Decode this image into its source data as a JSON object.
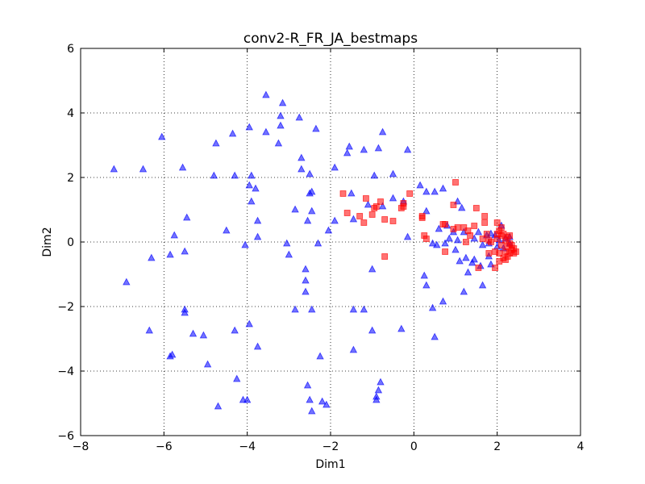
{
  "chart_data": {
    "type": "scatter",
    "title": "conv2-R_FR_JA_bestmaps",
    "xlabel": "Dim1",
    "ylabel": "Dim2",
    "xlim": [
      -8,
      4
    ],
    "ylim": [
      -6,
      6
    ],
    "xticks": [
      -8,
      -6,
      -4,
      -2,
      0,
      2,
      4
    ],
    "yticks": [
      -6,
      -4,
      -2,
      0,
      2,
      4,
      6
    ],
    "xtick_labels": [
      "−8",
      "−6",
      "−4",
      "−2",
      "0",
      "2",
      "4"
    ],
    "ytick_labels": [
      "−6",
      "−4",
      "−2",
      "0",
      "2",
      "4",
      "6"
    ],
    "grid": true,
    "series": [
      {
        "marker": "triangle",
        "color": "#0000ff",
        "points": [
          [
            -7.2,
            2.25
          ],
          [
            -6.5,
            2.25
          ],
          [
            -6.05,
            3.25
          ],
          [
            -6.9,
            -1.25
          ],
          [
            -6.3,
            -0.5
          ],
          [
            -6.35,
            -2.75
          ],
          [
            -5.85,
            -3.55
          ],
          [
            -5.8,
            -3.5
          ],
          [
            -5.85,
            -0.4
          ],
          [
            -5.75,
            0.2
          ],
          [
            -5.55,
            2.3
          ],
          [
            -5.45,
            0.75
          ],
          [
            -5.5,
            -0.3
          ],
          [
            -5.5,
            -2.1
          ],
          [
            -5.5,
            -2.2
          ],
          [
            -5.3,
            -2.85
          ],
          [
            -5.05,
            -2.9
          ],
          [
            -4.95,
            -3.8
          ],
          [
            -4.75,
            3.05
          ],
          [
            -4.8,
            2.05
          ],
          [
            -4.7,
            -5.1
          ],
          [
            -4.5,
            0.35
          ],
          [
            -4.35,
            3.35
          ],
          [
            -4.3,
            2.05
          ],
          [
            -4.3,
            -2.75
          ],
          [
            -4.25,
            -4.25
          ],
          [
            -4.1,
            -4.9
          ],
          [
            -4.0,
            -4.9
          ],
          [
            -4.05,
            -0.1
          ],
          [
            -3.95,
            3.55
          ],
          [
            -3.95,
            1.75
          ],
          [
            -3.9,
            2.05
          ],
          [
            -3.9,
            1.25
          ],
          [
            -3.95,
            -2.55
          ],
          [
            -3.75,
            -3.25
          ],
          [
            -3.8,
            1.65
          ],
          [
            -3.75,
            0.65
          ],
          [
            -3.75,
            0.15
          ],
          [
            -3.55,
            4.55
          ],
          [
            -3.55,
            3.4
          ],
          [
            -3.25,
            3.05
          ],
          [
            -3.15,
            4.3
          ],
          [
            -3.2,
            3.9
          ],
          [
            -3.2,
            3.6
          ],
          [
            -3.05,
            -0.05
          ],
          [
            -3.0,
            -0.4
          ],
          [
            -2.85,
            1.0
          ],
          [
            -2.85,
            -2.1
          ],
          [
            -2.75,
            3.85
          ],
          [
            -2.7,
            2.25
          ],
          [
            -2.7,
            2.6
          ],
          [
            -2.6,
            -0.85
          ],
          [
            -2.6,
            -1.2
          ],
          [
            -2.6,
            -1.55
          ],
          [
            -2.55,
            0.65
          ],
          [
            -2.5,
            2.1
          ],
          [
            -2.5,
            1.5
          ],
          [
            -2.45,
            0.95
          ],
          [
            -2.45,
            1.55
          ],
          [
            -2.45,
            -2.1
          ],
          [
            -2.55,
            -4.45
          ],
          [
            -2.5,
            -4.9
          ],
          [
            -2.45,
            -5.25
          ],
          [
            -2.35,
            3.5
          ],
          [
            -2.3,
            -0.05
          ],
          [
            -2.25,
            -3.55
          ],
          [
            -2.2,
            -4.95
          ],
          [
            -2.05,
            0.35
          ],
          [
            -2.1,
            -5.05
          ],
          [
            -1.9,
            0.65
          ],
          [
            -1.9,
            2.3
          ],
          [
            -1.6,
            2.75
          ],
          [
            -1.55,
            2.95
          ],
          [
            -1.5,
            1.5
          ],
          [
            -1.45,
            0.7
          ],
          [
            -1.45,
            -2.1
          ],
          [
            -1.45,
            -3.35
          ],
          [
            -1.2,
            2.85
          ],
          [
            -1.2,
            -2.1
          ],
          [
            -1.1,
            1.15
          ],
          [
            -1.0,
            -2.75
          ],
          [
            -1.0,
            -0.85
          ],
          [
            -0.95,
            2.05
          ],
          [
            -0.85,
            2.9
          ],
          [
            -0.75,
            3.4
          ],
          [
            -0.8,
            -4.35
          ],
          [
            -0.85,
            -4.6
          ],
          [
            -0.9,
            -4.8
          ],
          [
            -0.9,
            -4.9
          ],
          [
            -0.75,
            1.1
          ],
          [
            -0.5,
            2.1
          ],
          [
            -0.5,
            1.35
          ],
          [
            -0.3,
            -2.7
          ],
          [
            -0.25,
            1.25
          ],
          [
            -0.15,
            2.85
          ],
          [
            -0.15,
            0.15
          ],
          [
            0.15,
            1.75
          ],
          [
            0.25,
            -1.05
          ],
          [
            0.3,
            1.55
          ],
          [
            0.3,
            0.95
          ],
          [
            0.3,
            -1.35
          ],
          [
            0.45,
            -0.05
          ],
          [
            0.5,
            1.55
          ],
          [
            0.45,
            -2.05
          ],
          [
            0.5,
            -2.95
          ],
          [
            0.55,
            -0.1
          ],
          [
            0.6,
            0.4
          ],
          [
            0.7,
            1.65
          ],
          [
            0.7,
            -1.85
          ],
          [
            0.75,
            -0.05
          ],
          [
            0.8,
            0.5
          ],
          [
            0.85,
            0.1
          ],
          [
            0.95,
            0.3
          ],
          [
            1.0,
            -0.25
          ],
          [
            1.05,
            1.25
          ],
          [
            1.05,
            0.05
          ],
          [
            1.15,
            1.05
          ],
          [
            1.1,
            -0.6
          ],
          [
            1.2,
            0.3
          ],
          [
            1.2,
            -1.55
          ],
          [
            1.25,
            -0.5
          ],
          [
            1.3,
            -0.95
          ],
          [
            1.4,
            -0.65
          ],
          [
            1.45,
            -0.55
          ],
          [
            1.45,
            0.1
          ],
          [
            1.55,
            0.3
          ],
          [
            1.6,
            -0.75
          ],
          [
            1.65,
            -1.35
          ],
          [
            1.65,
            -0.1
          ],
          [
            1.75,
            0.2
          ],
          [
            1.8,
            -0.05
          ],
          [
            1.8,
            -0.45
          ],
          [
            1.85,
            0.25
          ],
          [
            1.85,
            -0.7
          ],
          [
            1.95,
            0.2
          ],
          [
            2.0,
            -0.15
          ],
          [
            2.05,
            0.05
          ],
          [
            2.1,
            0.5
          ],
          [
            2.15,
            -0.2
          ],
          [
            2.2,
            0.1
          ],
          [
            2.3,
            0.15
          ],
          [
            2.3,
            -0.05
          ]
        ]
      },
      {
        "marker": "square",
        "color": "#ff0000",
        "points": [
          [
            -1.7,
            1.5
          ],
          [
            -1.6,
            0.9
          ],
          [
            -1.3,
            0.8
          ],
          [
            -1.2,
            0.6
          ],
          [
            -1.15,
            1.35
          ],
          [
            -1.0,
            0.85
          ],
          [
            -0.95,
            1.05
          ],
          [
            -0.9,
            1.1
          ],
          [
            -0.8,
            1.25
          ],
          [
            -0.7,
            -0.45
          ],
          [
            -0.7,
            0.7
          ],
          [
            -0.5,
            0.65
          ],
          [
            -0.3,
            1.05
          ],
          [
            -0.25,
            1.1
          ],
          [
            -0.25,
            1.2
          ],
          [
            -0.1,
            1.5
          ],
          [
            0.2,
            0.8
          ],
          [
            0.2,
            0.75
          ],
          [
            0.25,
            0.2
          ],
          [
            0.3,
            0.1
          ],
          [
            0.7,
            0.55
          ],
          [
            0.75,
            -0.3
          ],
          [
            0.75,
            0.55
          ],
          [
            0.95,
            1.15
          ],
          [
            0.95,
            0.4
          ],
          [
            1.0,
            1.85
          ],
          [
            1.05,
            0.45
          ],
          [
            1.2,
            0.45
          ],
          [
            1.25,
            0.0
          ],
          [
            1.3,
            0.35
          ],
          [
            1.35,
            0.2
          ],
          [
            1.45,
            0.5
          ],
          [
            1.5,
            1.05
          ],
          [
            1.55,
            -0.8
          ],
          [
            1.65,
            0.1
          ],
          [
            1.7,
            0.8
          ],
          [
            1.7,
            0.6
          ],
          [
            1.75,
            0.25
          ],
          [
            1.8,
            0.05
          ],
          [
            1.85,
            0.0
          ],
          [
            1.8,
            -0.35
          ],
          [
            1.95,
            -0.3
          ],
          [
            1.95,
            -0.8
          ],
          [
            2.0,
            0.6
          ],
          [
            2.0,
            0.1
          ],
          [
            2.05,
            -0.35
          ],
          [
            2.05,
            0.35
          ],
          [
            2.1,
            0.2
          ],
          [
            2.1,
            -0.1
          ],
          [
            2.15,
            0.25
          ],
          [
            2.15,
            -0.5
          ],
          [
            2.2,
            0.05
          ],
          [
            2.2,
            -0.3
          ],
          [
            2.25,
            0.15
          ],
          [
            2.25,
            -0.15
          ],
          [
            2.3,
            -0.05
          ],
          [
            2.3,
            -0.35
          ],
          [
            2.35,
            -0.25
          ],
          [
            2.4,
            -0.2
          ],
          [
            2.45,
            -0.3
          ],
          [
            2.3,
            0.2
          ],
          [
            2.2,
            -0.55
          ],
          [
            2.1,
            0.45
          ],
          [
            2.05,
            -0.6
          ],
          [
            2.0,
            0.25
          ],
          [
            2.25,
            -0.45
          ],
          [
            2.35,
            -0.1
          ],
          [
            2.4,
            -0.35
          ]
        ]
      }
    ]
  }
}
